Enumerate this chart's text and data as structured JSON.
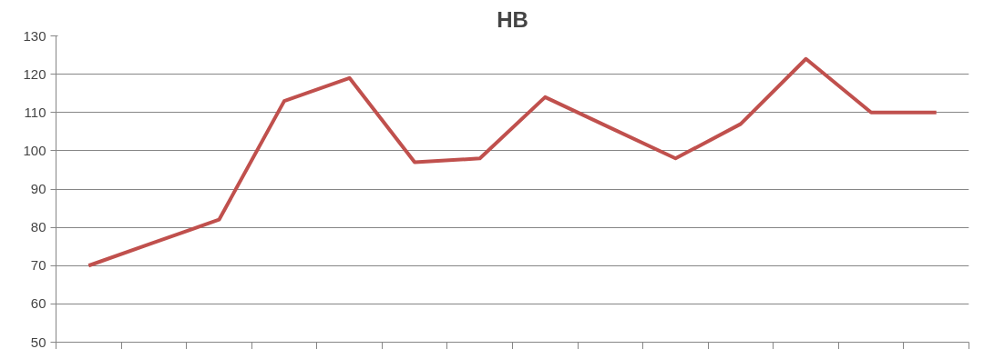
{
  "chart_data": {
    "type": "line",
    "title": "HB",
    "categories": [
      null,
      null,
      null,
      null,
      null,
      null,
      null,
      null,
      null,
      null,
      null,
      null,
      null,
      null
    ],
    "series": [
      {
        "color": "#c0504d",
        "values": [
          70,
          76,
          82,
          113,
          119,
          97,
          98,
          114,
          106,
          98,
          107,
          124,
          110,
          110
        ]
      }
    ],
    "ylim": [
      50,
      130
    ],
    "yticks": [
      50,
      60,
      70,
      80,
      90,
      100,
      110,
      120,
      130
    ],
    "grid": "y",
    "tick_labels": "y",
    "marker": "none"
  }
}
